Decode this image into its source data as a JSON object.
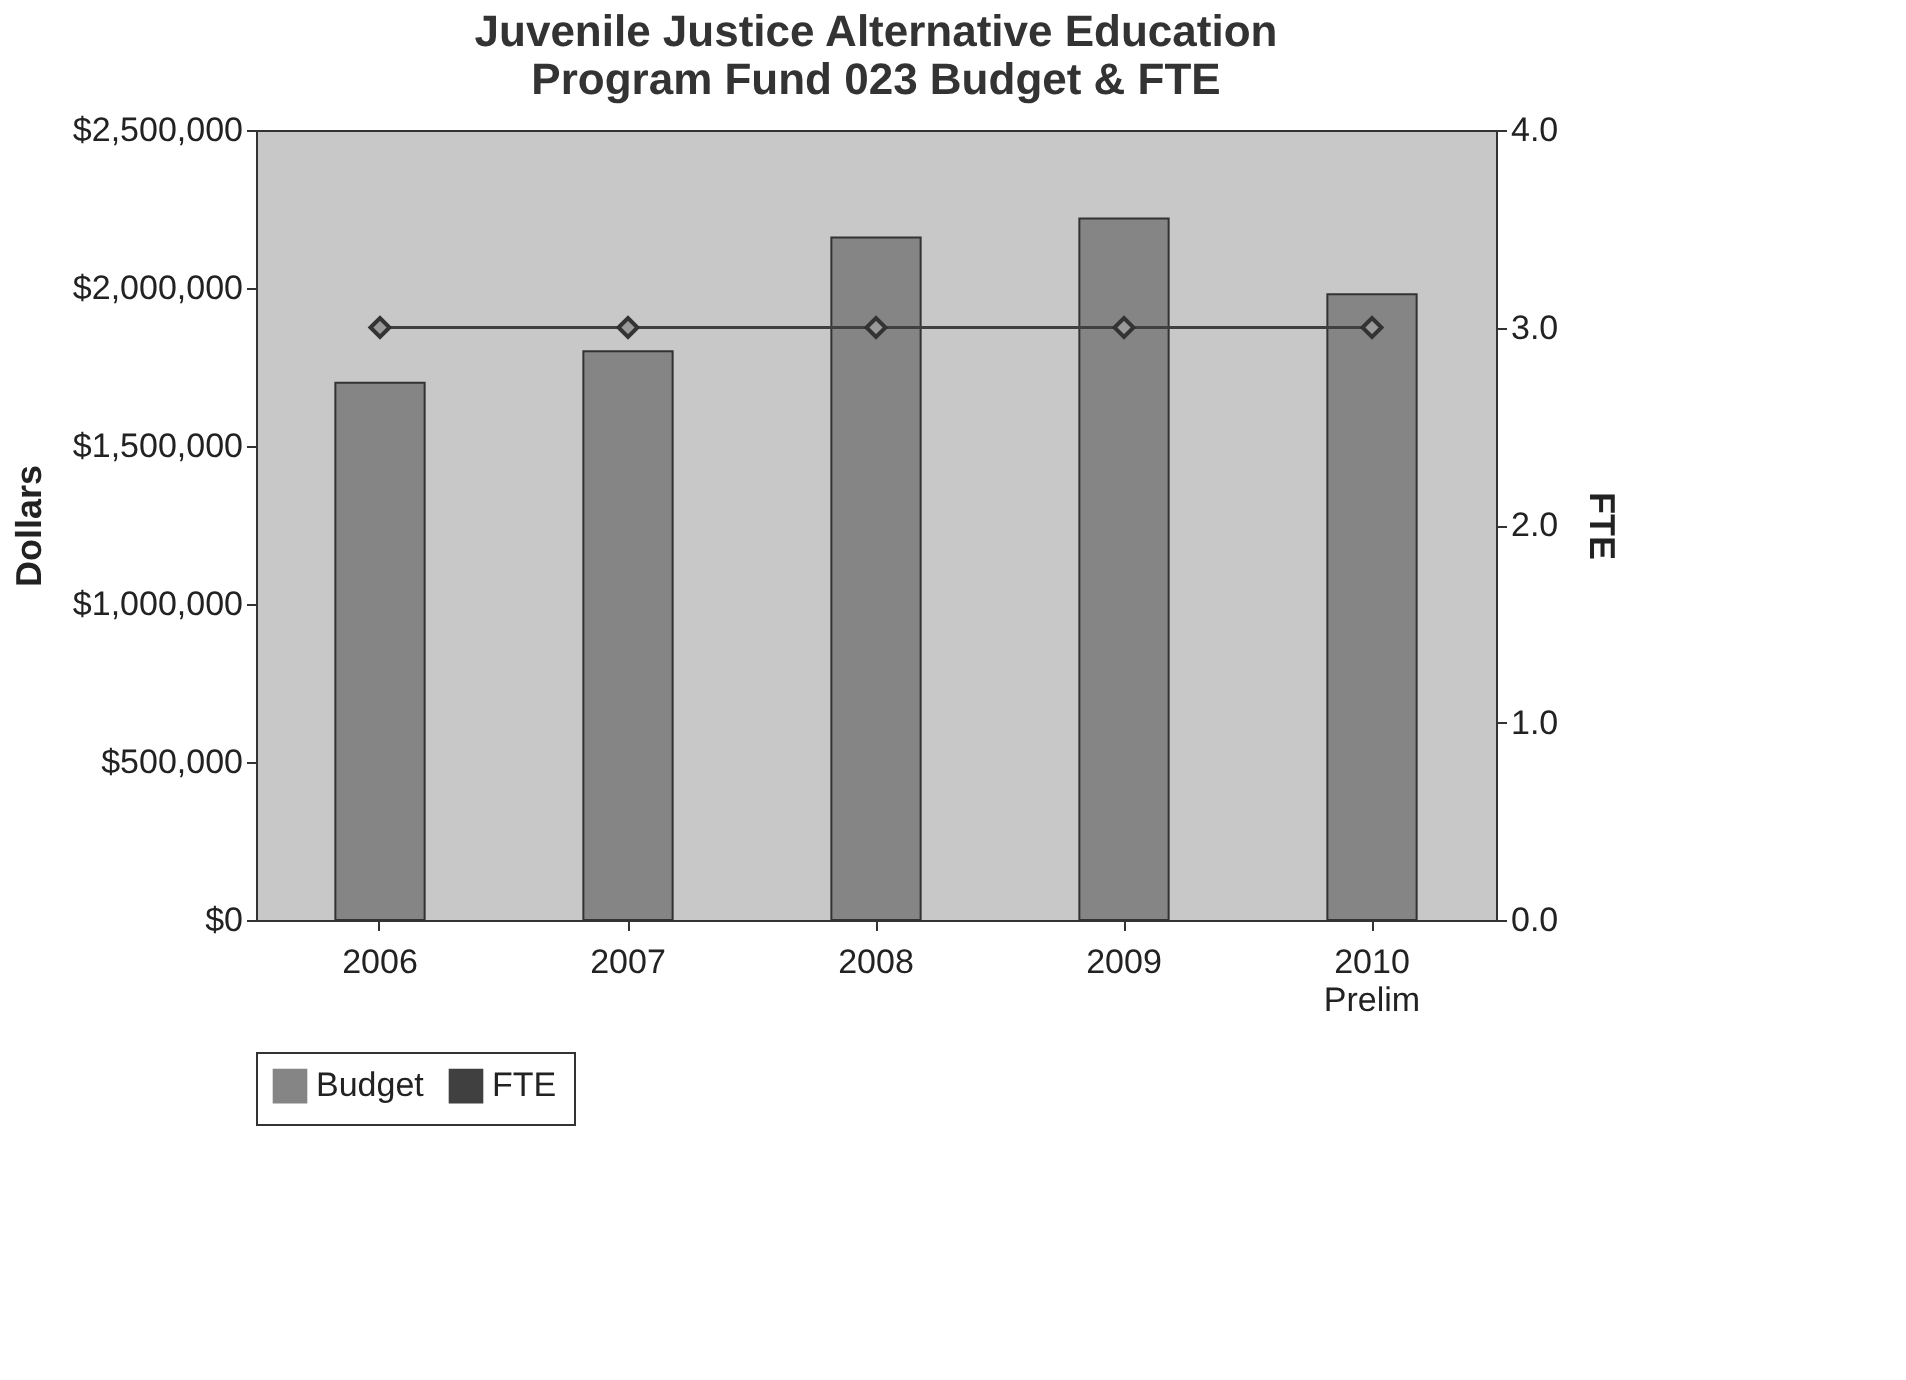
{
  "chart_data": {
    "type": "bar",
    "title": "Juvenile Justice Alternative Education\nProgram Fund 023 Budget & FTE",
    "ylabel": "Dollars",
    "y2label": "FTE",
    "categories": [
      "2006",
      "2007",
      "2008",
      "2009",
      "2010\nPrelim"
    ],
    "series": [
      {
        "name": "Budget",
        "color": "#858585",
        "values": [
          1700000,
          1800000,
          2160000,
          2220000,
          1980000
        ]
      },
      {
        "name": "FTE",
        "type": "line",
        "axis": "y2",
        "color": "#404040",
        "marker": "diamond",
        "line_style": "solid",
        "values": [
          3.0,
          3.0,
          3.0,
          3.0,
          3.0
        ]
      }
    ],
    "ylim": [
      0,
      2500000
    ],
    "yticks": [
      {
        "value": 0,
        "label": "$0"
      },
      {
        "value": 500000,
        "label": "$500,000"
      },
      {
        "value": 1000000,
        "label": "$1,000,000"
      },
      {
        "value": 1500000,
        "label": "$1,500,000"
      },
      {
        "value": 2000000,
        "label": "$2,000,000"
      },
      {
        "value": 2500000,
        "label": "$2,500,000"
      }
    ],
    "y2lim": [
      0,
      4
    ],
    "y2ticks": [
      {
        "value": 0,
        "label": "0.0"
      },
      {
        "value": 1,
        "label": "1.0"
      },
      {
        "value": 2,
        "label": "2.0"
      },
      {
        "value": 3,
        "label": "3.0"
      },
      {
        "value": 4,
        "label": "4.0"
      }
    ],
    "grid": false,
    "legend": "bottom"
  }
}
